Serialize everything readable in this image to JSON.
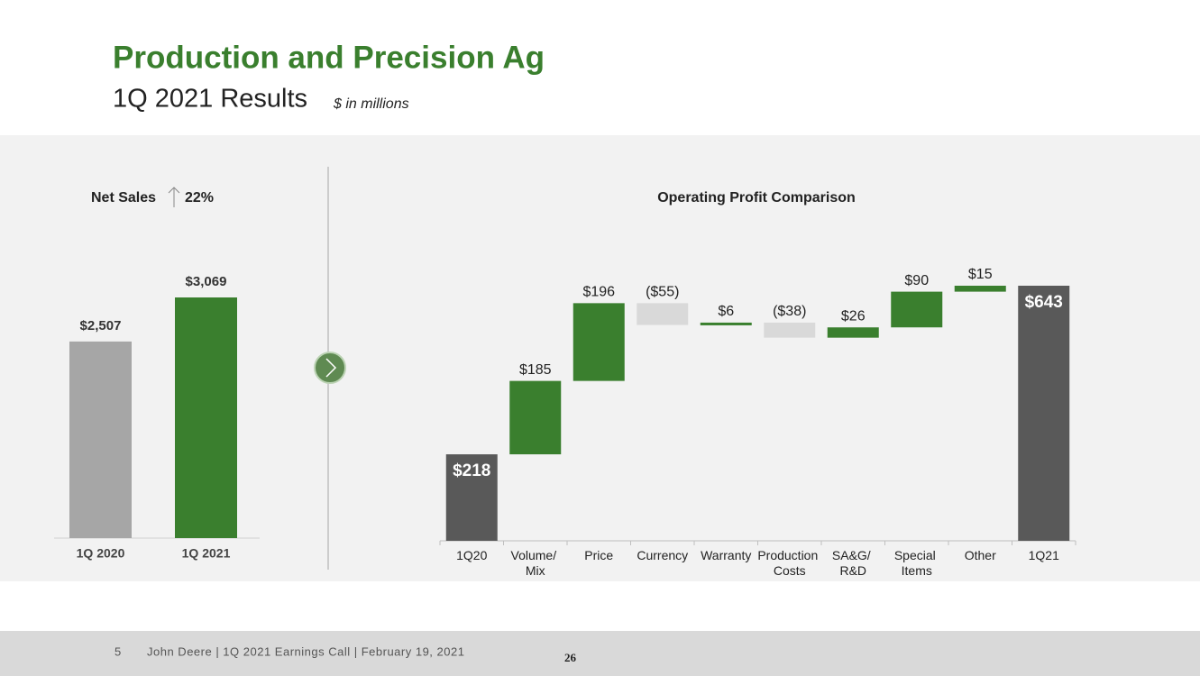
{
  "header": {
    "title": "Production and Precision Ag",
    "subtitle": "1Q 2021 Results",
    "units": "$ in millions"
  },
  "footer": {
    "page": "5",
    "text": "John Deere | 1Q 2021 Earnings Call | February 19, 2021",
    "number": "26"
  },
  "chart_data": [
    {
      "type": "bar",
      "title": "Net Sales",
      "change": "22%",
      "categories": [
        "1Q 2020",
        "1Q 2021"
      ],
      "values": [
        2507,
        3069
      ],
      "value_labels": [
        "$2,507",
        "$3,069"
      ],
      "colors": [
        "#a6a6a6",
        "#3a7f2e"
      ]
    },
    {
      "type": "waterfall",
      "title": "Operating Profit Comparison",
      "categories": [
        "1Q20",
        "Volume/ Mix",
        "Price",
        "Currency",
        "Warranty",
        "Production Costs",
        "SA&G/ R&D",
        "Special Items",
        "Other",
        "1Q21"
      ],
      "values": [
        218,
        185,
        196,
        -55,
        6,
        -38,
        26,
        90,
        15,
        643
      ],
      "value_labels": [
        "$218",
        "$185",
        "$196",
        "($55)",
        "$6",
        "($38)",
        "$26",
        "$90",
        "$15",
        "$643"
      ],
      "totals": [
        true,
        false,
        false,
        false,
        false,
        false,
        false,
        false,
        false,
        true
      ],
      "colors": {
        "total": "#595959",
        "increase": "#3a7f2e",
        "decrease": "#d9d9d9"
      }
    }
  ]
}
